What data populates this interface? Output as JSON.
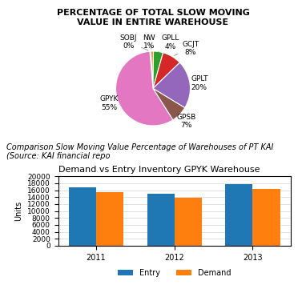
{
  "chart_data": [
    {
      "type": "pie",
      "title": "PERCENTAGE OF TOTAL SLOW MOVING\nVALUE IN ENTIRE WAREHOUSE",
      "categories": [
        "SOBJ\n0%",
        "NW\n1%",
        "GPLL\n4%",
        "GCJT\n8%",
        "GPLT\n20%",
        "GPSB\n7%",
        "GPYK\n55%"
      ],
      "values": [
        0.5,
        1,
        4,
        8,
        20,
        7,
        55
      ],
      "annotations": [
        "Comparison Slow Moving Value Percentage of Warehouses of PT KAI (Source: KAI financial repo"
      ]
    },
    {
      "type": "bar",
      "title": "Demand vs Entry Inventory GPYK Warehouse",
      "ylabel": "Units",
      "categories": [
        "2011",
        "2012",
        "2013"
      ],
      "series": [
        {
          "name": "Entry",
          "values": [
            16800,
            15000,
            17800
          ]
        },
        {
          "name": "Demand",
          "values": [
            15500,
            13800,
            16400
          ]
        }
      ],
      "ylim": [
        0,
        20000
      ],
      "yticks": [
        0,
        2000,
        4000,
        6000,
        8000,
        10000,
        12000,
        14000,
        16000,
        18000,
        20000
      ],
      "grid": true,
      "legend": "lower center"
    }
  ]
}
